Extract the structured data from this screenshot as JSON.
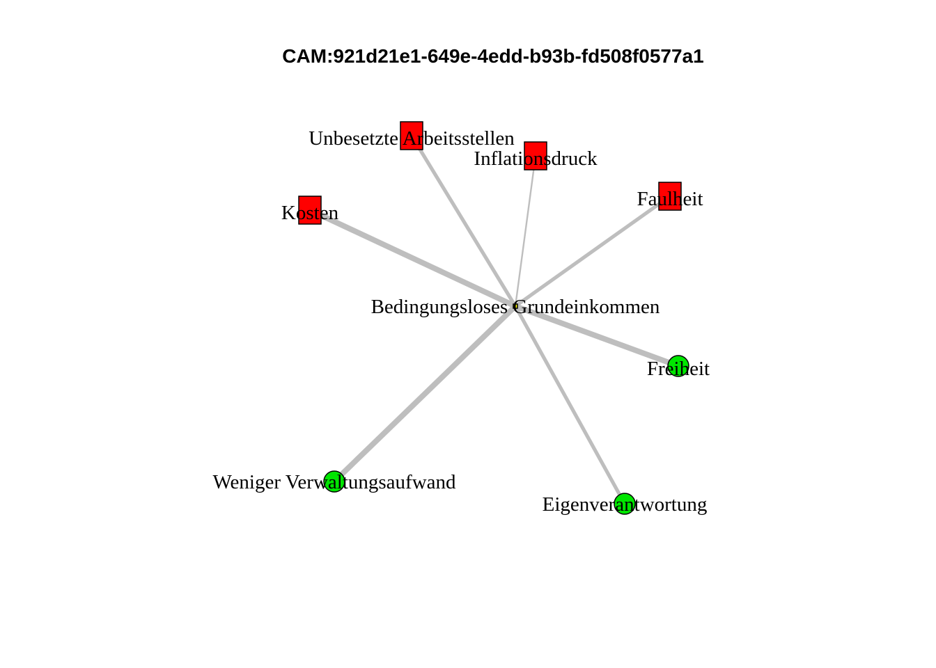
{
  "title": "CAM:921d21e1-649e-4edd-b93b-fd508f0577a1",
  "colors": {
    "negative": "#ff0000",
    "positive": "#00e600",
    "edge": "#bebebe",
    "center": "#ffff00"
  },
  "nodes": [
    {
      "id": "bgk",
      "label": "Bedingungsloses Grundeinkommen",
      "valence": "neutral",
      "shape": "tiny-square"
    },
    {
      "id": "unbesetzt",
      "label": "Unbesetzte Arbeitsstellen",
      "valence": "negative",
      "shape": "square"
    },
    {
      "id": "inflation",
      "label": "Inflationsdruck",
      "valence": "negative",
      "shape": "square"
    },
    {
      "id": "kosten",
      "label": "Kosten",
      "valence": "negative",
      "shape": "square"
    },
    {
      "id": "faulheit",
      "label": "Faulheit",
      "valence": "negative",
      "shape": "square"
    },
    {
      "id": "freiheit",
      "label": "Freiheit",
      "valence": "positive",
      "shape": "circle"
    },
    {
      "id": "verwaltung",
      "label": "Weniger Verwaltungsaufwand",
      "valence": "positive",
      "shape": "circle"
    },
    {
      "id": "eigen",
      "label": "Eigenverantwortung",
      "valence": "positive",
      "shape": "circle"
    }
  ],
  "edges": [
    {
      "from": "bgk",
      "to": "unbesetzt",
      "strength": 3
    },
    {
      "from": "bgk",
      "to": "inflation",
      "strength": 1
    },
    {
      "from": "bgk",
      "to": "kosten",
      "strength": 5
    },
    {
      "from": "bgk",
      "to": "faulheit",
      "strength": 3
    },
    {
      "from": "bgk",
      "to": "freiheit",
      "strength": 5
    },
    {
      "from": "bgk",
      "to": "verwaltung",
      "strength": 5
    },
    {
      "from": "bgk",
      "to": "eigen",
      "strength": 3
    }
  ]
}
